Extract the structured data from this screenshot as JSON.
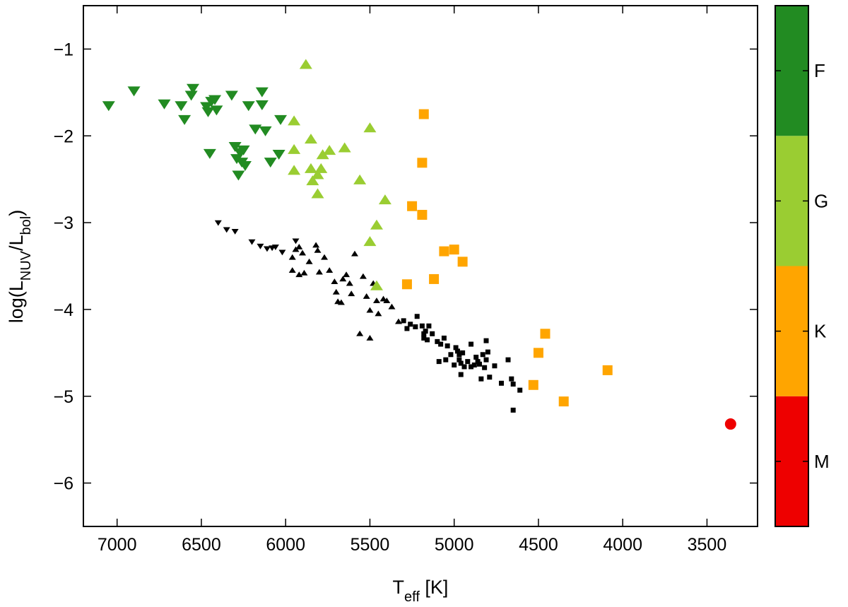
{
  "chart_data": {
    "type": "scatter",
    "xlabel": {
      "main": "T",
      "sub": "eff",
      "rest": " [K]"
    },
    "ylabel": {
      "pre": "log(L",
      "sub1": "NUV",
      "mid": "/L",
      "sub2": "bol",
      "post": ")"
    },
    "xlim": [
      7200,
      3200
    ],
    "ylim": [
      -6.5,
      -0.5
    ],
    "xticks": [
      7000,
      6500,
      6000,
      5500,
      5000,
      4500,
      4000,
      3500
    ],
    "yticks": [
      -1,
      -2,
      -3,
      -4,
      -5,
      -6
    ],
    "colorbar": {
      "bands": [
        {
          "label": "M",
          "color": "#ee0000"
        },
        {
          "label": "K",
          "color": "#ffa500"
        },
        {
          "label": "G",
          "color": "#9acd32"
        },
        {
          "label": "F",
          "color": "#228b22"
        }
      ]
    },
    "series": [
      {
        "name": "F",
        "marker": "triangle-down",
        "size": "large",
        "color": "#228b22",
        "points": [
          [
            7050,
            -1.65
          ],
          [
            6900,
            -1.48
          ],
          [
            6720,
            -1.63
          ],
          [
            6620,
            -1.65
          ],
          [
            6600,
            -1.81
          ],
          [
            6560,
            -1.53
          ],
          [
            6550,
            -1.45
          ],
          [
            6470,
            -1.66
          ],
          [
            6460,
            -1.72
          ],
          [
            6450,
            -2.2
          ],
          [
            6440,
            -1.6
          ],
          [
            6420,
            -1.58
          ],
          [
            6410,
            -1.7
          ],
          [
            6320,
            -1.53
          ],
          [
            6300,
            -2.12
          ],
          [
            6290,
            -2.26
          ],
          [
            6280,
            -2.45
          ],
          [
            6270,
            -2.19
          ],
          [
            6260,
            -2.3
          ],
          [
            6250,
            -2.16
          ],
          [
            6240,
            -2.34
          ],
          [
            6220,
            -1.65
          ],
          [
            6140,
            -1.49
          ],
          [
            6140,
            -1.64
          ],
          [
            6120,
            -1.94
          ],
          [
            6090,
            -2.3
          ],
          [
            6040,
            -2.21
          ],
          [
            6030,
            -1.81
          ],
          [
            6180,
            -1.92
          ]
        ]
      },
      {
        "name": "G",
        "marker": "triangle-up",
        "size": "large",
        "color": "#9acd32",
        "points": [
          [
            5880,
            -1.18
          ],
          [
            5950,
            -1.83
          ],
          [
            5950,
            -2.16
          ],
          [
            5950,
            -2.4
          ],
          [
            5850,
            -2.04
          ],
          [
            5850,
            -2.38
          ],
          [
            5840,
            -2.52
          ],
          [
            5810,
            -2.45
          ],
          [
            5790,
            -2.38
          ],
          [
            5810,
            -2.67
          ],
          [
            5780,
            -2.22
          ],
          [
            5740,
            -2.17
          ],
          [
            5650,
            -2.14
          ],
          [
            5560,
            -2.51
          ],
          [
            5500,
            -1.91
          ],
          [
            5500,
            -3.22
          ],
          [
            5460,
            -3.03
          ],
          [
            5460,
            -3.73
          ],
          [
            5410,
            -2.74
          ]
        ]
      },
      {
        "name": "K",
        "marker": "square",
        "size": "large",
        "color": "#ffa500",
        "points": [
          [
            5180,
            -1.75
          ],
          [
            5190,
            -2.31
          ],
          [
            5250,
            -2.81
          ],
          [
            5190,
            -2.91
          ],
          [
            5060,
            -3.33
          ],
          [
            5000,
            -3.31
          ],
          [
            4950,
            -3.45
          ],
          [
            5120,
            -3.65
          ],
          [
            5280,
            -3.71
          ],
          [
            4460,
            -4.28
          ],
          [
            4500,
            -4.5
          ],
          [
            4530,
            -4.87
          ],
          [
            4350,
            -5.06
          ],
          [
            4090,
            -4.7
          ]
        ]
      },
      {
        "name": "M",
        "marker": "circle",
        "size": "large",
        "color": "#ee0000",
        "points": [
          [
            3360,
            -5.32
          ]
        ]
      },
      {
        "name": "F-small",
        "marker": "triangle-down",
        "size": "small",
        "color": "#000000",
        "points": [
          [
            6400,
            -3.0
          ],
          [
            6350,
            -3.08
          ],
          [
            6300,
            -3.1
          ],
          [
            6200,
            -3.22
          ],
          [
            6150,
            -3.27
          ],
          [
            6110,
            -3.3
          ],
          [
            6080,
            -3.29
          ],
          [
            6020,
            -3.34
          ],
          [
            5940,
            -3.21
          ],
          [
            6060,
            -3.28
          ]
        ]
      },
      {
        "name": "G-small",
        "marker": "triangle-up",
        "size": "small",
        "color": "#000000",
        "points": [
          [
            5960,
            -3.4
          ],
          [
            5940,
            -3.31
          ],
          [
            5920,
            -3.28
          ],
          [
            5900,
            -3.35
          ],
          [
            5960,
            -3.55
          ],
          [
            5920,
            -3.6
          ],
          [
            5890,
            -3.58
          ],
          [
            5860,
            -3.45
          ],
          [
            5820,
            -3.26
          ],
          [
            5810,
            -3.32
          ],
          [
            5770,
            -3.4
          ],
          [
            5740,
            -3.55
          ],
          [
            5710,
            -3.68
          ],
          [
            5700,
            -3.8
          ],
          [
            5690,
            -3.91
          ],
          [
            5670,
            -3.92
          ],
          [
            5640,
            -3.6
          ],
          [
            5620,
            -3.7
          ],
          [
            5610,
            -3.82
          ],
          [
            5590,
            -3.36
          ],
          [
            5560,
            -4.28
          ],
          [
            5540,
            -3.62
          ],
          [
            5520,
            -3.85
          ],
          [
            5500,
            -4.01
          ],
          [
            5480,
            -3.7
          ],
          [
            5460,
            -3.9
          ],
          [
            5450,
            -4.05
          ],
          [
            5420,
            -3.88
          ],
          [
            5400,
            -3.9
          ],
          [
            5370,
            -3.97
          ],
          [
            5500,
            -4.33
          ],
          [
            5330,
            -4.14
          ],
          [
            5800,
            -3.57
          ],
          [
            5660,
            -3.65
          ]
        ]
      },
      {
        "name": "K-small",
        "marker": "square",
        "size": "small",
        "color": "#000000",
        "points": [
          [
            5300,
            -4.13
          ],
          [
            5280,
            -4.22
          ],
          [
            5260,
            -4.17
          ],
          [
            5230,
            -4.2
          ],
          [
            5220,
            -4.08
          ],
          [
            5190,
            -4.19
          ],
          [
            5180,
            -4.28
          ],
          [
            5170,
            -4.25
          ],
          [
            5160,
            -4.35
          ],
          [
            5150,
            -4.19
          ],
          [
            5130,
            -4.28
          ],
          [
            5100,
            -4.37
          ],
          [
            5080,
            -4.4
          ],
          [
            5060,
            -4.33
          ],
          [
            5050,
            -4.58
          ],
          [
            5040,
            -4.42
          ],
          [
            5020,
            -4.52
          ],
          [
            5000,
            -4.64
          ],
          [
            4990,
            -4.44
          ],
          [
            4980,
            -4.48
          ],
          [
            4970,
            -4.52
          ],
          [
            4970,
            -4.58
          ],
          [
            4960,
            -4.62
          ],
          [
            4960,
            -4.75
          ],
          [
            4950,
            -4.5
          ],
          [
            4940,
            -4.66
          ],
          [
            4920,
            -4.6
          ],
          [
            4900,
            -4.66
          ],
          [
            4880,
            -4.64
          ],
          [
            4870,
            -4.55
          ],
          [
            4860,
            -4.6
          ],
          [
            4850,
            -4.63
          ],
          [
            4840,
            -4.8
          ],
          [
            4830,
            -4.52
          ],
          [
            4820,
            -4.67
          ],
          [
            4810,
            -4.58
          ],
          [
            4810,
            -4.36
          ],
          [
            4800,
            -4.49
          ],
          [
            4790,
            -4.78
          ],
          [
            4760,
            -4.65
          ],
          [
            4720,
            -4.85
          ],
          [
            4680,
            -4.58
          ],
          [
            4660,
            -4.8
          ],
          [
            4650,
            -4.86
          ],
          [
            4650,
            -5.16
          ],
          [
            4610,
            -4.93
          ],
          [
            5180,
            -4.33
          ],
          [
            5090,
            -4.6
          ],
          [
            4900,
            -4.4
          ]
        ]
      }
    ]
  }
}
